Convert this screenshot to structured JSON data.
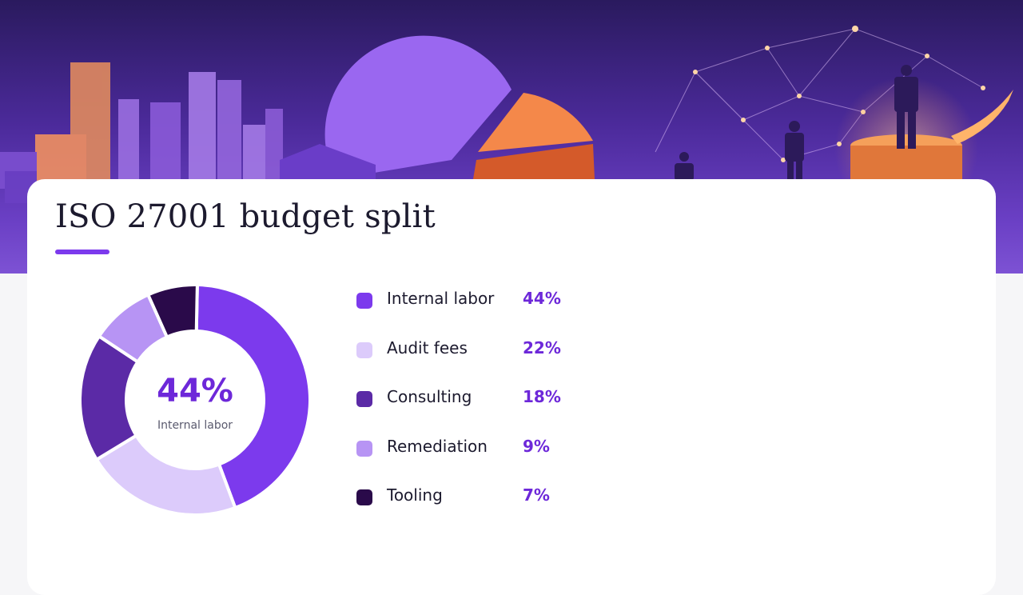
{
  "title": "ISO 27001 budget split",
  "chart_data": {
    "type": "pie",
    "title": "ISO 27001 budget split",
    "categories": [
      "Internal labor",
      "Audit fees",
      "Consulting",
      "Remediation",
      "Tooling"
    ],
    "values": [
      44,
      22,
      18,
      9,
      7
    ],
    "unit": "%",
    "colors": [
      "#7c3aed",
      "#dccbfb",
      "#5b2aa6",
      "#b794f4",
      "#2a0a4a"
    ],
    "center": {
      "value": "44%",
      "label": "Internal labor"
    },
    "legend_position": "right"
  },
  "legend": [
    {
      "label": "Internal labor",
      "value": "44%"
    },
    {
      "label": "Audit fees",
      "value": "22%"
    },
    {
      "label": "Consulting",
      "value": "18%"
    },
    {
      "label": "Remediation",
      "value": "9%"
    },
    {
      "label": "Tooling",
      "value": "7%"
    }
  ]
}
